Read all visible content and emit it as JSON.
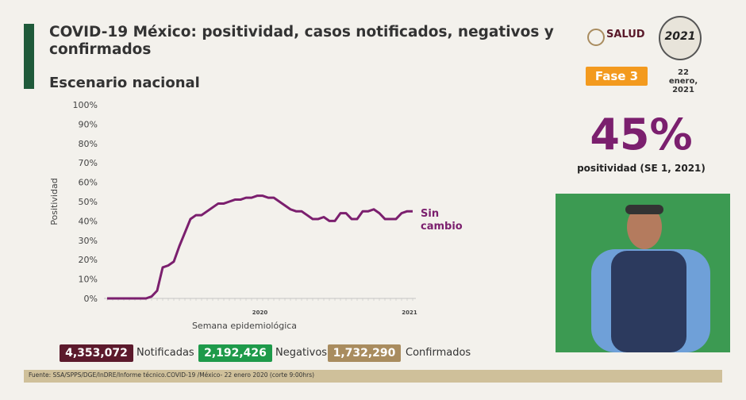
{
  "header": {
    "title": "COVID-19 México: positividad, casos notificados, negativos y confirmados",
    "subtitle": "Escenario nacional"
  },
  "logos": {
    "salud": "SALUD",
    "year_logo": "2021"
  },
  "phase": "Fase 3",
  "date": "22 enero, 2021",
  "positivity": {
    "value": "45%",
    "caption": "positividad (SE 1, 2021)"
  },
  "stats": [
    {
      "value": "4,353,072",
      "label": "Notificadas"
    },
    {
      "value": "2,192,426",
      "label": "Negativos"
    },
    {
      "value": "1,732,290",
      "label": "Confirmados"
    }
  ],
  "source": "Fuente: SSA/SPPS/DGE/InDRE/Informe técnico.COVID-19 /México- 22 enero 2020 (corte 9:00hrs)",
  "chart_data": {
    "type": "line",
    "y_label": "Positividad",
    "x_label": "Semana epidemiológica",
    "year_labels": [
      "2020",
      "2021"
    ],
    "annotation": "Sin cambio",
    "color": "#7b1f6e",
    "categories": [
      null,
      null,
      null,
      null,
      null,
      null,
      null,
      null,
      null,
      null,
      null,
      null,
      null,
      null,
      null,
      null,
      null,
      null,
      null,
      null,
      null,
      null,
      null,
      null,
      null,
      null,
      null,
      null,
      null,
      null,
      null,
      null,
      null,
      null,
      null,
      null,
      null,
      null,
      null,
      null,
      null,
      null,
      null,
      null,
      null,
      null,
      null,
      null,
      null,
      null,
      null,
      null,
      null,
      null,
      null,
      null
    ],
    "values": [
      0,
      0,
      0,
      0,
      0,
      0,
      0,
      0,
      1,
      4,
      16,
      17,
      19,
      27,
      34,
      41,
      43,
      43,
      45,
      47,
      49,
      49,
      50,
      51,
      51,
      52,
      52,
      53,
      53,
      52,
      52,
      50,
      48,
      46,
      45,
      45,
      43,
      41,
      41,
      42,
      40,
      40,
      44,
      44,
      41,
      41,
      45,
      45,
      46,
      44,
      41,
      41,
      41,
      44,
      45,
      45
    ],
    "ylim": [
      0,
      100
    ],
    "yticks": [
      {
        "value": 0,
        "label": "0%"
      },
      {
        "value": 10,
        "label": "10%"
      },
      {
        "value": 20,
        "label": "20%"
      },
      {
        "value": 30,
        "label": "30%"
      },
      {
        "value": 40,
        "label": "40%"
      },
      {
        "value": 50,
        "label": "50%"
      },
      {
        "value": 60,
        "label": "60%"
      },
      {
        "value": 70,
        "label": "70%"
      },
      {
        "value": 80,
        "label": "80%"
      },
      {
        "value": 90,
        "label": "90%"
      },
      {
        "value": 100,
        "label": "100%"
      }
    ],
    "grid": false
  }
}
